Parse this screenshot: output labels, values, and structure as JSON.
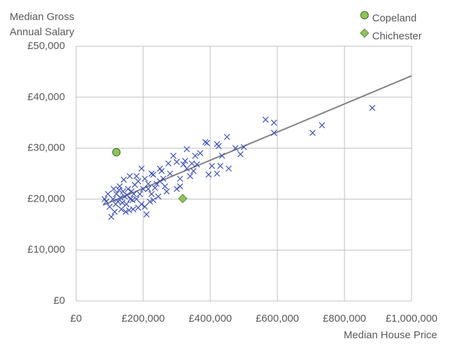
{
  "chart_data": {
    "type": "scatter",
    "y_label": [
      "Median Gross",
      "Annual Salary"
    ],
    "x_label": "Median House Price",
    "xlim": [
      0,
      1000000
    ],
    "xticks": [
      {
        "value": 0,
        "label": "£0"
      },
      {
        "value": 200000,
        "label": "£200,000"
      },
      {
        "value": 400000,
        "label": "£400,000"
      },
      {
        "value": 600000,
        "label": "£600,000"
      },
      {
        "value": 800000,
        "label": "£800,000"
      },
      {
        "value": 1000000,
        "label": "£1,000,000"
      }
    ],
    "ylim": [
      0,
      50000
    ],
    "yticks": [
      {
        "value": 0,
        "label": "£0"
      },
      {
        "value": 10000,
        "label": "£10,000"
      },
      {
        "value": 20000,
        "label": "£20,000"
      },
      {
        "value": 30000,
        "label": "£30,000"
      },
      {
        "value": 40000,
        "label": "£40,000"
      },
      {
        "value": 50000,
        "label": "£50,000"
      }
    ],
    "grid": true,
    "series": [
      {
        "color": "#3a4fbf",
        "marker": "x",
        "x": [
          883000,
          733000,
          705000,
          590000,
          565000,
          590000,
          500000,
          490000,
          475000,
          450000,
          455000,
          435000,
          420000,
          425000,
          390000,
          385000,
          405000,
          430000,
          420000,
          395000,
          355000,
          345000,
          330000,
          320000,
          300000,
          290000,
          275000,
          265000,
          280000,
          250000,
          255000,
          240000,
          230000,
          225000,
          220000,
          210000,
          200000,
          195000,
          185000,
          180000,
          170000,
          165000,
          160000,
          155000,
          150000,
          145000,
          140000,
          135000,
          130000,
          125000,
          120000,
          115000,
          110000,
          105000,
          100000,
          95000,
          90000,
          85000,
          350000,
          310000,
          370000,
          300000,
          260000,
          215000,
          205000,
          190000,
          175000,
          168000,
          158000,
          142000,
          132000,
          128000,
          245000,
          235000,
          225000,
          205000,
          195000,
          185000,
          180000,
          172000,
          162000,
          152000,
          148000,
          138000,
          118000,
          112000,
          330000,
          340000,
          360000,
          310000,
          270000,
          325000,
          215000,
          230000,
          250000
        ],
        "y": [
          37900,
          34500,
          33000,
          35000,
          35600,
          33000,
          30200,
          28800,
          30000,
          32200,
          26000,
          28500,
          30800,
          30400,
          31000,
          31200,
          26500,
          26500,
          25000,
          24800,
          28500,
          27000,
          29800,
          26800,
          27300,
          28500,
          27000,
          22500,
          25000,
          26000,
          25500,
          23000,
          24800,
          21000,
          19500,
          17000,
          22000,
          26000,
          23500,
          20000,
          18000,
          21500,
          24500,
          22000,
          19000,
          20500,
          21500,
          18000,
          22500,
          19500,
          21000,
          17500,
          20000,
          16500,
          18500,
          21000,
          19500,
          20000,
          25500,
          22500,
          29000,
          22000,
          24000,
          23000,
          18500,
          21000,
          22800,
          19800,
          17800,
          23800,
          20300,
          21800,
          20500,
          22200,
          25000,
          24000,
          19000,
          18300,
          24500,
          21000,
          20000,
          20800,
          17500,
          19300,
          19000,
          22000,
          26000,
          24500,
          26800,
          24000,
          21500,
          27500,
          22000,
          19800,
          23500
        ]
      },
      {
        "name": "Copeland",
        "color": "#8cc65a",
        "marker": "circle",
        "x": [
          120000
        ],
        "y": [
          29200
        ]
      },
      {
        "name": "Chichester",
        "color": "#8cc65a",
        "marker": "diamond",
        "x": [
          318000
        ],
        "y": [
          20100
        ]
      }
    ],
    "trendline": {
      "color": "#808080",
      "x": [
        80000,
        1000000
      ],
      "y": [
        18800,
        44200
      ]
    }
  }
}
